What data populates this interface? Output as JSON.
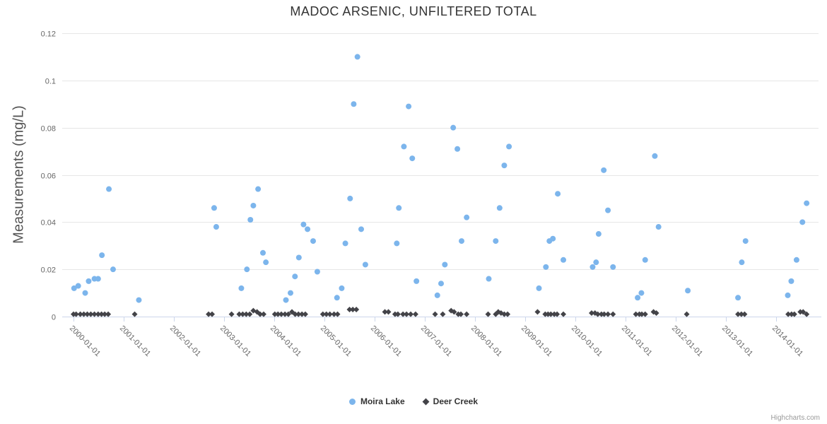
{
  "colors": {
    "background": "#ffffff",
    "grid": "#e6e6e6",
    "axis_line": "#ccd6eb",
    "axis_label": "#666666",
    "title": "#333333",
    "series_moira": "#7cb5ec",
    "series_deer": "#434348"
  },
  "credit": {
    "label": "Highcharts.com"
  },
  "legend": {
    "items": [
      {
        "label": "Moira Lake",
        "color": "#7cb5ec",
        "marker": "circle"
      },
      {
        "label": "Deer Creek",
        "color": "#434348",
        "marker": "diamond"
      }
    ]
  },
  "chart_data": {
    "type": "scatter",
    "title": "MADOC ARSENIC, UNFILTERED TOTAL",
    "xlabel": "",
    "ylabel": "Measurements (mg/L)",
    "ylim": [
      0,
      0.12
    ],
    "grid": "horizontal",
    "legend_position": "bottom-center",
    "y_ticks": [
      0,
      0.02,
      0.04,
      0.06,
      0.08,
      0.1,
      0.12
    ],
    "y_tick_labels": [
      "0",
      "0.02",
      "0.04",
      "0.06",
      "0.08",
      "0.1",
      "0.12"
    ],
    "x_tick_labels": [
      "2000-01-01",
      "2001-01-01",
      "2002-01-01",
      "2003-01-01",
      "2004-01-01",
      "2005-01-01",
      "2006-01-01",
      "2007-01-01",
      "2008-01-01",
      "2009-01-01",
      "2010-01-01",
      "2011-01-01",
      "2012-01-01",
      "2013-01-01",
      "2014-01-01"
    ],
    "series": [
      {
        "name": "Moira Lake",
        "color": "#7cb5ec",
        "marker": "circle",
        "data": [
          [
            "2000-01-05",
            0.012
          ],
          [
            "2000-02-05",
            0.013
          ],
          [
            "2000-03-25",
            0.01
          ],
          [
            "2000-04-20",
            0.015
          ],
          [
            "2000-06-01",
            0.016
          ],
          [
            "2000-06-28",
            0.016
          ],
          [
            "2000-07-25",
            0.026
          ],
          [
            "2000-09-15",
            0.054
          ],
          [
            "2000-10-15",
            0.02
          ],
          [
            "2001-04-20",
            0.007
          ],
          [
            "2002-10-20",
            0.046
          ],
          [
            "2002-11-05",
            0.038
          ],
          [
            "2003-05-05",
            0.012
          ],
          [
            "2003-06-15",
            0.02
          ],
          [
            "2003-07-10",
            0.041
          ],
          [
            "2003-08-01",
            0.047
          ],
          [
            "2003-09-05",
            0.054
          ],
          [
            "2003-10-10",
            0.027
          ],
          [
            "2003-11-01",
            0.023
          ],
          [
            "2004-03-25",
            0.007
          ],
          [
            "2004-04-28",
            0.01
          ],
          [
            "2004-05-30",
            0.017
          ],
          [
            "2004-06-28",
            0.025
          ],
          [
            "2004-08-01",
            0.039
          ],
          [
            "2004-08-30",
            0.037
          ],
          [
            "2004-10-10",
            0.032
          ],
          [
            "2004-11-10",
            0.019
          ],
          [
            "2005-04-01",
            0.008
          ],
          [
            "2005-05-05",
            0.012
          ],
          [
            "2005-06-01",
            0.031
          ],
          [
            "2005-07-05",
            0.05
          ],
          [
            "2005-08-01",
            0.09
          ],
          [
            "2005-08-28",
            0.11
          ],
          [
            "2005-09-25",
            0.037
          ],
          [
            "2005-10-25",
            0.022
          ],
          [
            "2006-06-10",
            0.031
          ],
          [
            "2006-06-25",
            0.046
          ],
          [
            "2006-08-01",
            0.072
          ],
          [
            "2006-09-05",
            0.089
          ],
          [
            "2006-10-01",
            0.067
          ],
          [
            "2006-11-01",
            0.015
          ],
          [
            "2007-04-01",
            0.009
          ],
          [
            "2007-04-28",
            0.014
          ],
          [
            "2007-05-25",
            0.022
          ],
          [
            "2007-07-25",
            0.08
          ],
          [
            "2007-08-25",
            0.071
          ],
          [
            "2007-09-25",
            0.032
          ],
          [
            "2007-11-01",
            0.042
          ],
          [
            "2008-04-10",
            0.016
          ],
          [
            "2008-05-30",
            0.032
          ],
          [
            "2008-06-28",
            0.046
          ],
          [
            "2008-08-01",
            0.064
          ],
          [
            "2008-09-05",
            0.072
          ],
          [
            "2009-04-10",
            0.012
          ],
          [
            "2009-05-30",
            0.021
          ],
          [
            "2009-06-25",
            0.032
          ],
          [
            "2009-07-20",
            0.033
          ],
          [
            "2009-08-25",
            0.052
          ],
          [
            "2009-10-05",
            0.024
          ],
          [
            "2010-05-05",
            0.021
          ],
          [
            "2010-05-30",
            0.023
          ],
          [
            "2010-06-18",
            0.035
          ],
          [
            "2010-07-25",
            0.062
          ],
          [
            "2010-08-25",
            0.045
          ],
          [
            "2010-10-01",
            0.021
          ],
          [
            "2011-03-28",
            0.008
          ],
          [
            "2011-04-25",
            0.01
          ],
          [
            "2011-05-22",
            0.024
          ],
          [
            "2011-08-01",
            0.068
          ],
          [
            "2011-08-28",
            0.038
          ],
          [
            "2012-03-28",
            0.011
          ],
          [
            "2013-03-28",
            0.008
          ],
          [
            "2013-04-25",
            0.023
          ],
          [
            "2013-05-22",
            0.032
          ],
          [
            "2014-03-25",
            0.009
          ],
          [
            "2014-04-20",
            0.015
          ],
          [
            "2014-05-28",
            0.024
          ],
          [
            "2014-07-10",
            0.04
          ],
          [
            "2014-08-10",
            0.048
          ]
        ]
      },
      {
        "name": "Deer Creek",
        "color": "#434348",
        "marker": "diamond",
        "data": [
          [
            "2000-01-01",
            0.001
          ],
          [
            "2000-01-20",
            0.001
          ],
          [
            "2000-02-20",
            0.001
          ],
          [
            "2000-03-15",
            0.001
          ],
          [
            "2000-04-10",
            0.001
          ],
          [
            "2000-05-05",
            0.001
          ],
          [
            "2000-06-01",
            0.001
          ],
          [
            "2000-06-28",
            0.001
          ],
          [
            "2000-07-22",
            0.001
          ],
          [
            "2000-08-15",
            0.001
          ],
          [
            "2000-09-10",
            0.001
          ],
          [
            "2001-03-20",
            0.001
          ],
          [
            "2002-09-10",
            0.001
          ],
          [
            "2002-10-05",
            0.001
          ],
          [
            "2003-02-25",
            0.001
          ],
          [
            "2003-04-20",
            0.001
          ],
          [
            "2003-05-15",
            0.001
          ],
          [
            "2003-06-10",
            0.001
          ],
          [
            "2003-07-05",
            0.001
          ],
          [
            "2003-08-01",
            0.0025
          ],
          [
            "2003-08-28",
            0.002
          ],
          [
            "2003-09-20",
            0.001
          ],
          [
            "2003-10-15",
            0.001
          ],
          [
            "2004-01-05",
            0.001
          ],
          [
            "2004-01-28",
            0.001
          ],
          [
            "2004-02-22",
            0.001
          ],
          [
            "2004-03-18",
            0.001
          ],
          [
            "2004-04-12",
            0.001
          ],
          [
            "2004-05-08",
            0.002
          ],
          [
            "2004-06-01",
            0.001
          ],
          [
            "2004-06-25",
            0.001
          ],
          [
            "2004-07-20",
            0.001
          ],
          [
            "2004-08-14",
            0.001
          ],
          [
            "2004-12-20",
            0.001
          ],
          [
            "2005-01-15",
            0.001
          ],
          [
            "2005-02-10",
            0.001
          ],
          [
            "2005-03-10",
            0.001
          ],
          [
            "2005-04-05",
            0.001
          ],
          [
            "2005-07-01",
            0.003
          ],
          [
            "2005-07-25",
            0.003
          ],
          [
            "2005-08-20",
            0.003
          ],
          [
            "2006-03-15",
            0.002
          ],
          [
            "2006-04-10",
            0.002
          ],
          [
            "2006-05-28",
            0.001
          ],
          [
            "2006-06-18",
            0.001
          ],
          [
            "2006-07-25",
            0.001
          ],
          [
            "2006-08-20",
            0.001
          ],
          [
            "2006-09-20",
            0.001
          ],
          [
            "2006-10-25",
            0.001
          ],
          [
            "2007-03-15",
            0.001
          ],
          [
            "2007-05-10",
            0.001
          ],
          [
            "2007-07-10",
            0.0025
          ],
          [
            "2007-08-01",
            0.002
          ],
          [
            "2007-09-01",
            0.001
          ],
          [
            "2007-09-20",
            0.001
          ],
          [
            "2007-11-01",
            0.001
          ],
          [
            "2008-04-05",
            0.001
          ],
          [
            "2008-05-30",
            0.001
          ],
          [
            "2008-06-18",
            0.002
          ],
          [
            "2008-07-08",
            0.0015
          ],
          [
            "2008-08-01",
            0.001
          ],
          [
            "2008-08-25",
            0.001
          ],
          [
            "2009-03-30",
            0.002
          ],
          [
            "2009-05-25",
            0.001
          ],
          [
            "2009-06-15",
            0.001
          ],
          [
            "2009-07-05",
            0.001
          ],
          [
            "2009-07-30",
            0.001
          ],
          [
            "2009-08-20",
            0.001
          ],
          [
            "2009-10-05",
            0.001
          ],
          [
            "2010-04-28",
            0.0015
          ],
          [
            "2010-05-22",
            0.0015
          ],
          [
            "2010-06-12",
            0.001
          ],
          [
            "2010-07-08",
            0.001
          ],
          [
            "2010-07-28",
            0.001
          ],
          [
            "2010-08-25",
            0.001
          ],
          [
            "2010-10-01",
            0.001
          ],
          [
            "2011-03-15",
            0.001
          ],
          [
            "2011-04-10",
            0.001
          ],
          [
            "2011-04-28",
            0.001
          ],
          [
            "2011-05-22",
            0.001
          ],
          [
            "2011-07-22",
            0.002
          ],
          [
            "2011-08-12",
            0.0015
          ],
          [
            "2012-03-20",
            0.001
          ],
          [
            "2013-03-28",
            0.001
          ],
          [
            "2013-04-22",
            0.001
          ],
          [
            "2013-05-15",
            0.001
          ],
          [
            "2014-03-28",
            0.001
          ],
          [
            "2014-04-22",
            0.001
          ],
          [
            "2014-05-12",
            0.001
          ],
          [
            "2014-06-25",
            0.002
          ],
          [
            "2014-07-15",
            0.002
          ],
          [
            "2014-08-10",
            0.001
          ]
        ]
      }
    ]
  }
}
